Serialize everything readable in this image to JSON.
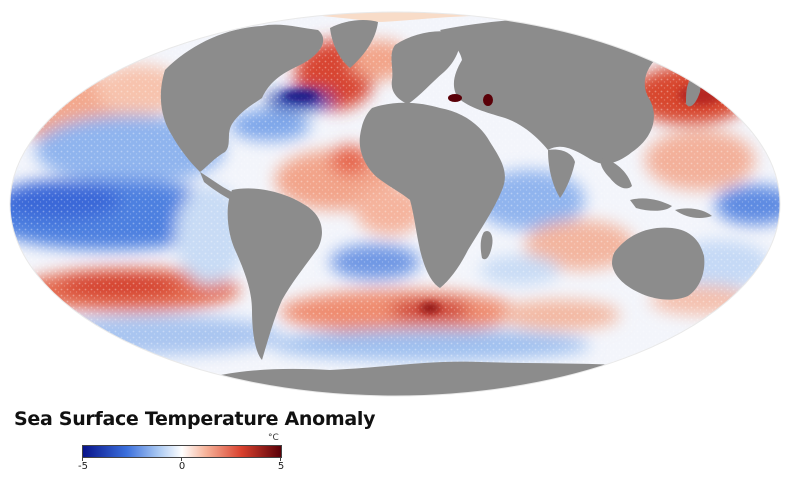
{
  "legend": {
    "title": "Sea Surface Temperature Anomaly",
    "unit": "°C",
    "min_label": "-5",
    "mid_label": "0",
    "max_label": "5",
    "colors": {
      "cold_extreme": "#08138a",
      "cold": "#3b6fdc",
      "cool": "#a9c8f2",
      "neutral": "#ffffff",
      "warm": "#f6b39a",
      "hot": "#d9412e",
      "hot_extreme": "#5a0008"
    }
  },
  "map": {
    "projection": "Mollweide",
    "ocean_base_color": "#f3f5fb",
    "land_color": "#8c8c8c",
    "ice_color": "#f8dcc8"
  }
}
